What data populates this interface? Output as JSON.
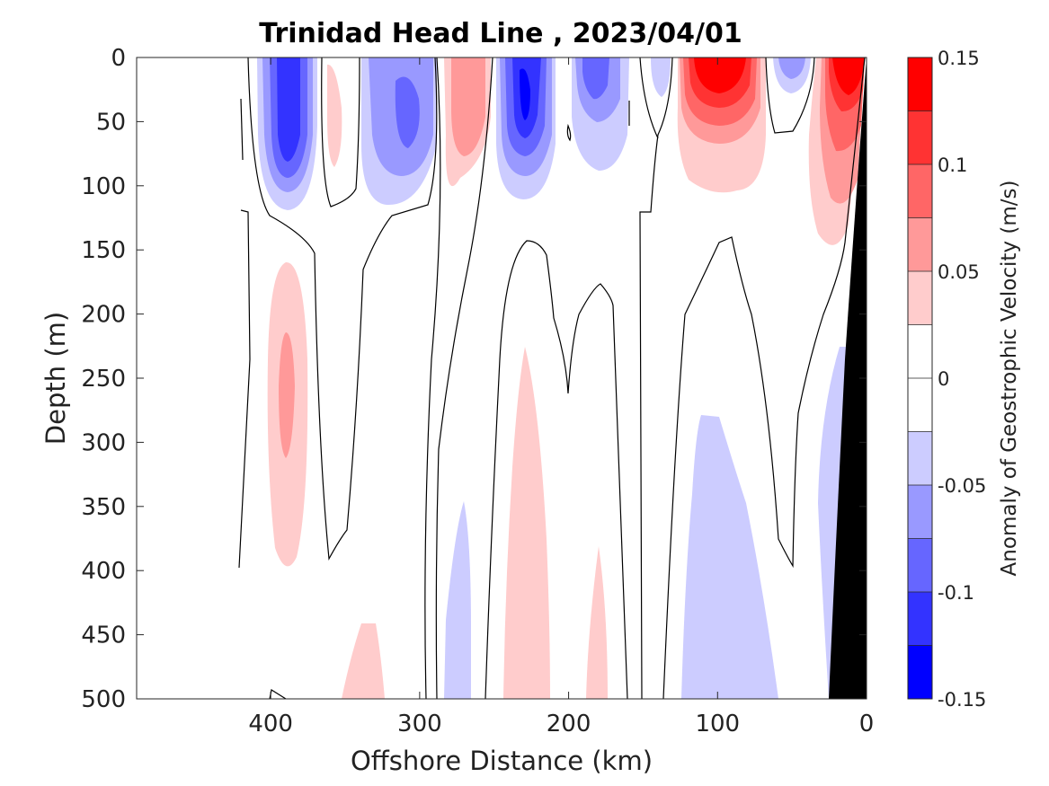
{
  "chart_data": {
    "type": "contour",
    "title": "Trinidad Head Line , 2023/04/01",
    "xlabel": "Offshore Distance (km)",
    "ylabel": "Depth (m)",
    "x_reversed": true,
    "xlim": [
      0,
      490
    ],
    "xticks": [
      400,
      300,
      200,
      100,
      0
    ],
    "y_reversed": true,
    "ylim": [
      0,
      500
    ],
    "yticks": [
      0,
      50,
      100,
      150,
      200,
      250,
      300,
      350,
      400,
      450,
      500
    ],
    "colorbar": {
      "label": "Anomaly of Geostrophic Velocity (m/s)",
      "range": [
        -0.15,
        0.15
      ],
      "ticks": [
        0.15,
        0.1,
        0.05,
        0,
        -0.05,
        -0.1,
        -0.15
      ],
      "levels": [
        0.15,
        0.125,
        0.1,
        0.075,
        0.05,
        0.025,
        0,
        -0.025,
        -0.05,
        -0.075,
        -0.1,
        -0.125,
        -0.15
      ],
      "colors": [
        "#ff0000",
        "#ff3333",
        "#ff6666",
        "#ff9999",
        "#ffcccc",
        "#ffffff",
        "#ffffff",
        "#ccccff",
        "#9999ff",
        "#6666ff",
        "#3333ff",
        "#0000ff"
      ]
    },
    "bathymetry_color": "#000000",
    "zero_contour_color": "#000000",
    "features": [
      {
        "x": 385,
        "depth": 50,
        "value": -0.1
      },
      {
        "x": 320,
        "depth": 50,
        "value": -0.075
      },
      {
        "x": 270,
        "depth": 30,
        "value": 0.075
      },
      {
        "x": 230,
        "depth": 40,
        "value": -0.125
      },
      {
        "x": 180,
        "depth": 30,
        "value": -0.075
      },
      {
        "x": 100,
        "depth": 20,
        "value": 0.125
      },
      {
        "x": 50,
        "depth": 10,
        "value": -0.05
      },
      {
        "x": 15,
        "depth": 20,
        "value": 0.125
      },
      {
        "x": 390,
        "depth": 260,
        "value": 0.05
      },
      {
        "x": 230,
        "depth": 350,
        "value": 0.025
      },
      {
        "x": 95,
        "depth": 400,
        "value": -0.025
      },
      {
        "x": 280,
        "depth": 440,
        "value": -0.025
      }
    ]
  }
}
